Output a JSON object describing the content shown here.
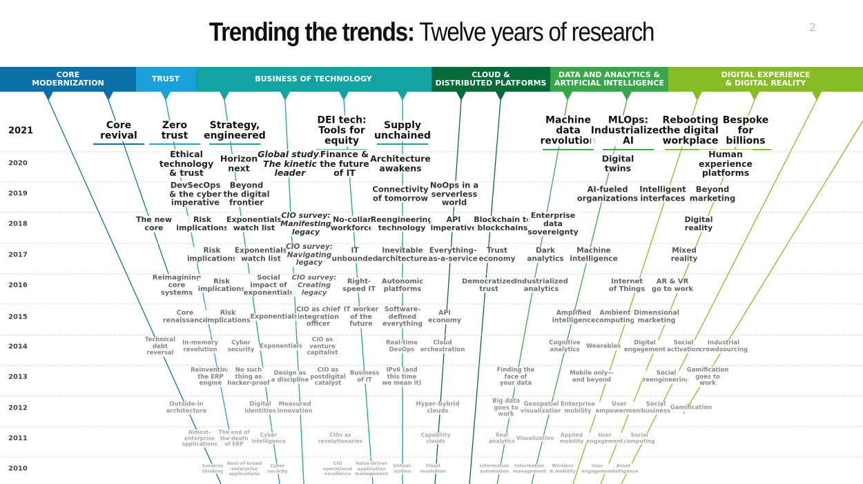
{
  "header": {
    "title_bold": "Trending the trends:",
    "title_light": "Twelve years of research",
    "page_number": "2"
  },
  "bands": [
    "CORE\nMODERNIZATION",
    "TRUST",
    "BUSINESS OF TECHNOLOGY",
    "CLOUD &\nDISTRIBUTED PLATFORMS",
    "DATA AND ANALYTICS &\nARTIFICIAL INTELLIGENCE",
    "DIGITAL EXPERIENCE\n& DIGITAL REALITY"
  ],
  "rows": [
    {
      "year": "2021",
      "items": [
        "Core\nrevival",
        "Zero\ntrust",
        "Strategy,\nengineered",
        "DEI tech:\nTools for\nequity",
        "Supply\nunchained",
        "Machine\ndata\nrevolution",
        "MLOps:\nIndustrialized\nAI",
        "Rebooting\nthe digital\nworkplace",
        "Bespoke\nfor\nbillions"
      ]
    },
    {
      "year": "2020",
      "items": [
        "Ethical\ntechnology\n& trust",
        "Horizon\nnext",
        "Global study:\nThe kinetic\nleader",
        "Finance &\nthe future\nof IT",
        "Architecture\nawakens",
        "Digital\ntwins",
        "Human\nexperience\nplatforms"
      ]
    },
    {
      "year": "2019",
      "items": [
        "DevSecOps\n& the cyber\nimperative",
        "Beyond\nthe digital\nfrontier",
        "Connectivity\nof tomorrow",
        "NoOps in a\nserverless\nworld",
        "AI-fueled\norganizations",
        "Intelligent\ninterfaces",
        "Beyond\nmarketing"
      ]
    },
    {
      "year": "2018",
      "items": [
        "The new\ncore",
        "Risk\nimplications",
        "Exponentials\nwatch list",
        "CIO survey:\nManifesting\nlegacy",
        "No-collar\nworkforce",
        "Reengineering\ntechnology",
        "API\nimperative",
        "Blockchain to\nblockchains",
        "Enterprise\ndata\nsovereignty",
        "Digital\nreality"
      ]
    },
    {
      "year": "2017",
      "items": [
        "Risk\nimplications",
        "Exponentials\nwatch list",
        "CIO survey:\nNavigating\nlegacy",
        "IT\nunbounded",
        "Inevitable\narchitecture",
        "Everything-\nas-a-service",
        "Trust\neconomy",
        "Dark\nanalytics",
        "Machine\nintelligence",
        "Mixed\nreality"
      ]
    },
    {
      "year": "2016",
      "items": [
        "Reimagining\ncore\nsystems",
        "Risk\nimplications",
        "Social\nimpact of\nexponentials",
        "CIO survey:\nCreating\nlegacy",
        "Right-\nspeed IT",
        "Autonomic\nplatforms",
        "Democratized\ntrust",
        "Industrialized\nanalytics",
        "Internet\nof Things",
        "AR & VR\ngo to work"
      ]
    },
    {
      "year": "2015",
      "items": [
        "Core\nrenaissance",
        "Risk\nimplications",
        "Exponentials",
        "CIO as chief\nintegration\nofficer",
        "IT worker\nof the\nfuture",
        "Software-\ndefined\neverything",
        "API\neconomy",
        "Amplified\nintelligence",
        "Ambient\ncomputing",
        "Dimensional\nmarketing"
      ]
    },
    {
      "year": "2014",
      "items": [
        "Technical\ndebt\nreversal",
        "In-memory\nrevolution",
        "Cyber\nsecurity",
        "Exponentials",
        "CIO as\nventure\ncapitalist",
        "Real-time\nDevOps",
        "Cloud\norchestration",
        "Cognitive\nanalytics",
        "Wearables",
        "Digital\nengagement",
        "Social\nactivation",
        "Industrial\ncrowdsourcing"
      ]
    },
    {
      "year": "2013",
      "items": [
        "Reinventing\nthe ERP\nengine",
        "No such\nthing as\nhacker-proof",
        "Design as\na discipline",
        "CIO as\npostdigital\ncatalyst",
        "Business\nof IT",
        "IPv6 (and\nthis time\nwe mean it)",
        "Finding the\nface of\nyour data",
        "Mobile only—\nand beyond",
        "Social\nreengineering",
        "Gamification\ngoes to\nwork"
      ]
    },
    {
      "year": "2012",
      "items": [
        "Outside-in\narchitecture",
        "Digital\nidentities",
        "Measured\ninnovation",
        "Hyper-hybrid\nclouds",
        "Big data\ngoes to\nwork",
        "Geospatial\nvisualization",
        "Enterprise\nmobility",
        "User\nempowerment",
        "Social\nbusiness",
        "Gamification"
      ]
    },
    {
      "year": "2011",
      "items": [
        "Almost-\nenterprise\napplications",
        "The end of\nthe death\nof ERP",
        "Cyber\nintelligence",
        "CIOs as\nrevolutionaries",
        "Capability\nclouds",
        "Real\nanalytics",
        "Visualization",
        "Applied\nmobility",
        "User\nengagement",
        "Social\ncomputing"
      ]
    },
    {
      "year": "2010",
      "items": [
        "Services\nthinking",
        "Best-of-breed\nenterprise\napplications",
        "Cyber\nsecurity",
        "CIO\noperational\nexcellence",
        "Value-driven\napplication\nmanagement",
        "Virtual-\nization",
        "Cloud\nrevolution",
        "Information\nautomation",
        "Information\nmanagement",
        "Wireless\n& mobility",
        "User\nengagement",
        "Asset\nintelligence"
      ]
    }
  ]
}
